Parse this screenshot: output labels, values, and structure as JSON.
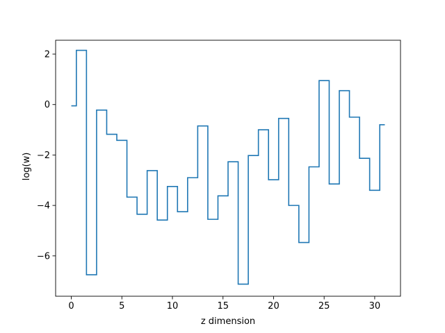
{
  "chart_data": {
    "type": "line",
    "drawstyle": "steps-mid",
    "title": "",
    "xlabel": "z dimension",
    "ylabel": "log(w)",
    "xlim": [
      -1.55,
      32.55
    ],
    "ylim": [
      -7.6,
      2.55
    ],
    "xticks": [
      0,
      5,
      10,
      15,
      20,
      25,
      30
    ],
    "yticks": [
      -6,
      -4,
      -2,
      0,
      2
    ],
    "grid": false,
    "legend": "none",
    "color": "#1f77b4",
    "series": [
      {
        "x": [
          0,
          1,
          2,
          3,
          4,
          5,
          6,
          7,
          8,
          9,
          10,
          11,
          12,
          13,
          14,
          15,
          16,
          17,
          18,
          19,
          20,
          21,
          22,
          23,
          24,
          25,
          26,
          27,
          28,
          29,
          30,
          31
        ],
        "values": [
          -0.05,
          2.15,
          -6.75,
          -0.22,
          -1.18,
          -1.42,
          -3.67,
          -4.35,
          -2.62,
          -4.58,
          -3.25,
          -4.25,
          -2.9,
          -0.85,
          -4.55,
          -3.62,
          -2.27,
          -7.12,
          -2.02,
          -1.0,
          -2.98,
          -0.55,
          -4.0,
          -5.47,
          -2.47,
          0.95,
          -3.15,
          0.55,
          -0.5,
          -2.13,
          -3.4,
          -0.8
        ]
      }
    ]
  }
}
